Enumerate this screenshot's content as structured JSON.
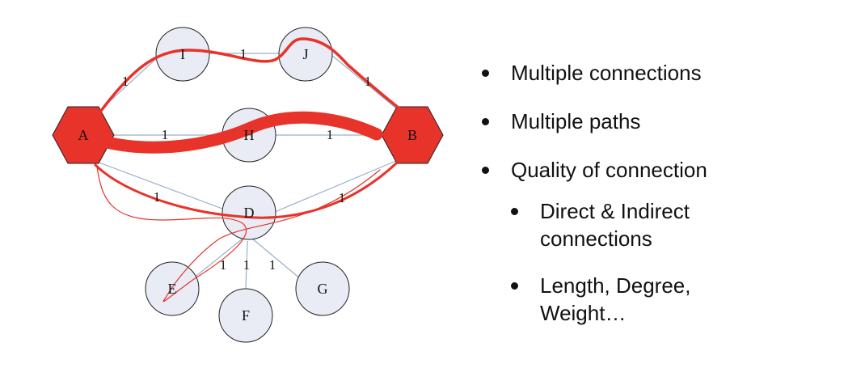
{
  "graph": {
    "nodes": {
      "A": "A",
      "B": "B",
      "D": "D",
      "E": "E",
      "F": "F",
      "G": "G",
      "H": "H",
      "I": "I",
      "J": "J"
    },
    "edge_weights": {
      "A_I": "1",
      "I_J": "1",
      "J_B": "1",
      "A_H": "1",
      "H_B": "1",
      "A_D": "1",
      "D_B": "1",
      "D_E": "1",
      "D_F": "1",
      "D_G": "1"
    },
    "colors": {
      "highlight": "#e8332a",
      "node_fill": "#e9ecf4",
      "edge": "#9ab0c8"
    }
  },
  "bullets": {
    "item1": "Multiple connections",
    "item2": "Multiple paths",
    "item3": "Quality of connection",
    "sub1": "Direct & Indirect connections",
    "sub2": "Length, Degree, Weight…"
  }
}
